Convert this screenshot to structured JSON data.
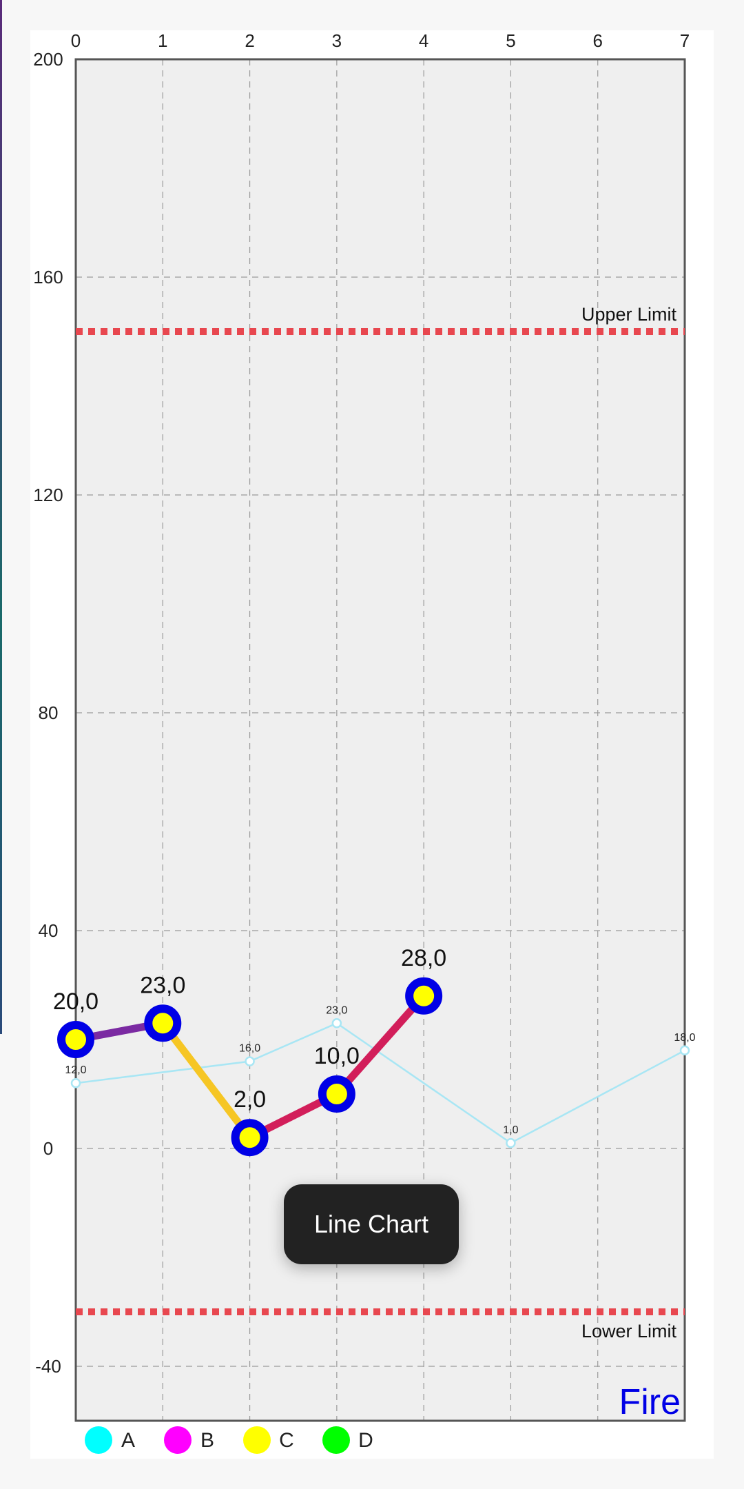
{
  "chart_data": {
    "type": "line",
    "x_ticks": [
      0,
      1,
      2,
      3,
      4,
      5,
      6,
      7
    ],
    "y_ticks": [
      200,
      160,
      120,
      80,
      40,
      0,
      -40
    ],
    "xlim": [
      0,
      7
    ],
    "ylim": [
      -50,
      200
    ],
    "grid": true,
    "grid_style": "dashed",
    "background_color": "#efefef",
    "limit_lines": [
      {
        "label": "Upper Limit",
        "value": 150,
        "color": "#e8474f"
      },
      {
        "label": "Lower Limit",
        "value": -30,
        "color": "#e8474f"
      }
    ],
    "series": [
      {
        "x": [
          0,
          1,
          2,
          3,
          4
        ],
        "y": [
          20,
          23,
          2,
          10,
          28
        ],
        "labels": [
          "20,0",
          "23,0",
          "2,0",
          "10,0",
          "28,0"
        ],
        "segment_colors": [
          "#7b2aa2",
          "#f6c624",
          "#d21e5a",
          "#d21e5a"
        ],
        "marker_color": "#ffff00",
        "marker_ring_color": "#0000e6"
      },
      {
        "x": [
          0,
          2,
          3,
          5,
          7
        ],
        "y": [
          12,
          16,
          23,
          1,
          18
        ],
        "labels": [
          "12,0",
          "16,0",
          "23,0",
          "1,0",
          "18,0"
        ],
        "line_color": "#a8e6f4",
        "marker_color": "#ffffff"
      }
    ],
    "legend": {
      "placement": "bottom-left",
      "items": [
        {
          "label": "A",
          "color": "#00ffff"
        },
        {
          "label": "B",
          "color": "#ff00ff"
        },
        {
          "label": "C",
          "color": "#ffff00"
        },
        {
          "label": "D",
          "color": "#00ff00"
        }
      ]
    },
    "watermark": {
      "text": "Fire",
      "color": "#0000e6"
    }
  },
  "toast": {
    "text": "Line Chart"
  }
}
